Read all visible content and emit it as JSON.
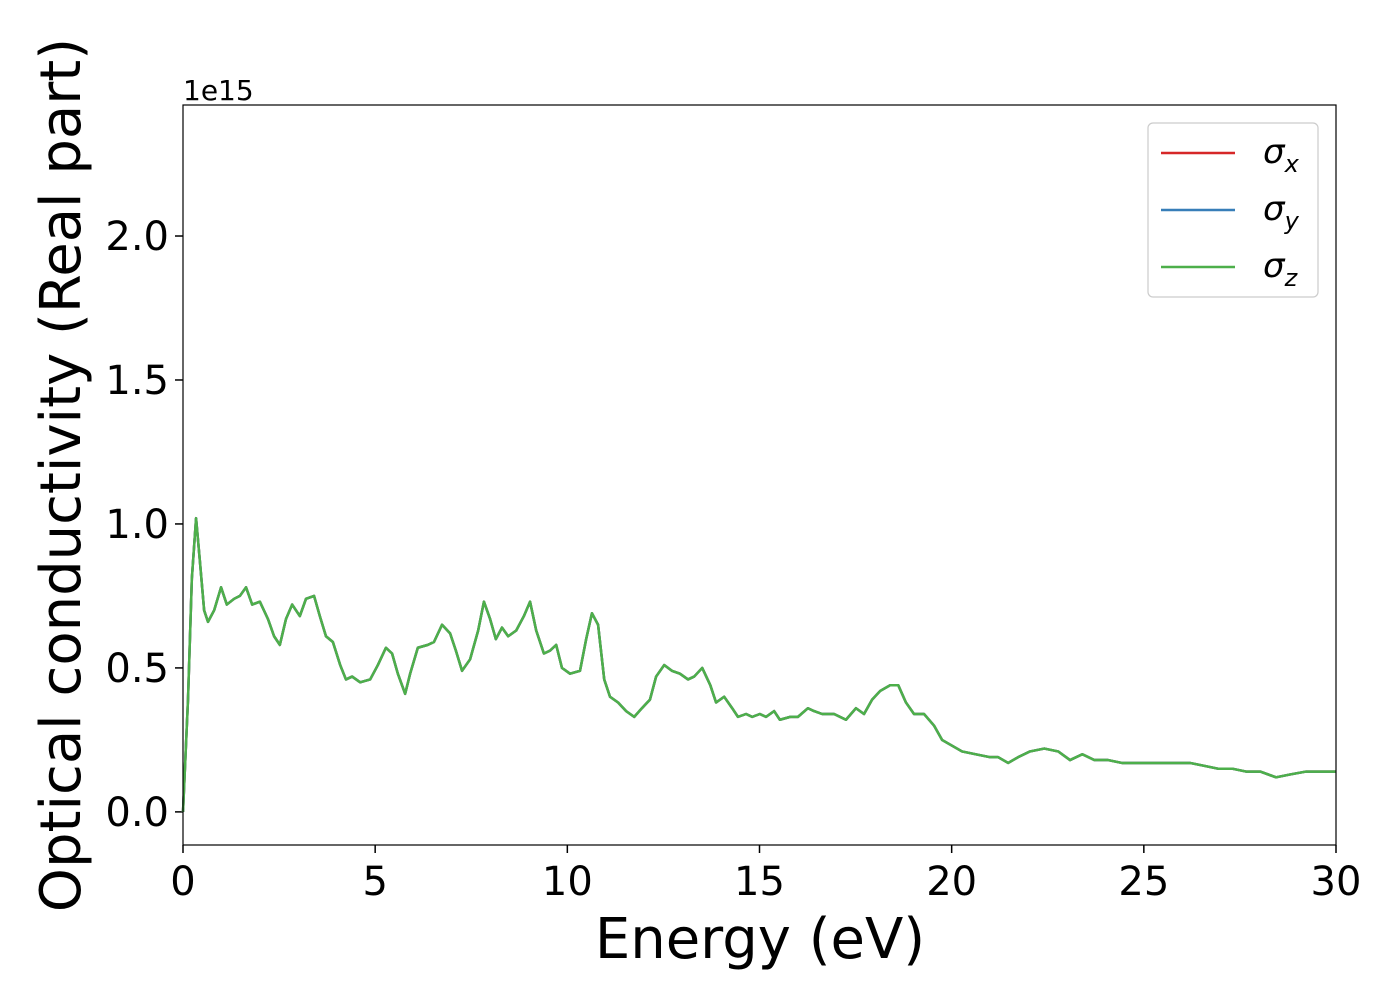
{
  "chart_data": {
    "type": "line",
    "xlabel": "Energy (eV)",
    "ylabel": "Optical conductivity (Real part)",
    "y_offset_label": "1e15",
    "xlim": [
      0,
      30
    ],
    "ylim": [
      -0.115,
      2.455
    ],
    "xticks": [
      0,
      5,
      10,
      15,
      20,
      25,
      30
    ],
    "yticks": [
      {
        "value": 0,
        "label": "0.0"
      },
      0.5,
      {
        "value": 1,
        "label": "1.0"
      },
      1.5,
      {
        "value": 2,
        "label": "2.0"
      }
    ],
    "legend": "upper right",
    "x": [
      0,
      0.13,
      0.23,
      0.34,
      0.44,
      0.55,
      0.65,
      0.81,
      0.99,
      1.14,
      1.33,
      1.48,
      1.64,
      1.8,
      2,
      2.21,
      2.37,
      2.52,
      2.68,
      2.84,
      3.04,
      3.2,
      3.41,
      3.56,
      3.72,
      3.9,
      4.09,
      4.24,
      4.4,
      4.61,
      4.87,
      5.07,
      5.28,
      5.44,
      5.59,
      5.78,
      5.91,
      6.11,
      6.37,
      6.53,
      6.74,
      6.95,
      7.1,
      7.26,
      7.47,
      7.68,
      7.83,
      7.99,
      8.14,
      8.3,
      8.46,
      8.67,
      8.87,
      9.03,
      9.19,
      9.39,
      9.55,
      9.71,
      9.86,
      10.07,
      10.33,
      10.49,
      10.64,
      10.8,
      10.96,
      11.11,
      11.32,
      11.53,
      11.74,
      11.94,
      12.15,
      12.31,
      12.52,
      12.72,
      12.93,
      13.14,
      13.3,
      13.51,
      13.72,
      13.87,
      14.08,
      14.29,
      14.44,
      14.65,
      14.81,
      15.01,
      15.17,
      15.38,
      15.53,
      15.8,
      16,
      16.26,
      16.42,
      16.63,
      16.94,
      17.25,
      17.51,
      17.72,
      17.93,
      18.14,
      18.4,
      18.61,
      18.81,
      19.02,
      19.28,
      19.54,
      19.75,
      20.01,
      20.27,
      20.63,
      21,
      21.21,
      21.47,
      21.73,
      22.04,
      22.41,
      22.77,
      23.08,
      23.4,
      23.71,
      24.07,
      24.43,
      24.8,
      25.16,
      25.47,
      25.84,
      26.2,
      26.57,
      26.93,
      27.3,
      27.66,
      28.03,
      28.44,
      28.81,
      29.22,
      29.58,
      30
    ],
    "series": [
      {
        "name": "σx",
        "color": "#d62728",
        "values": [
          0,
          0.39,
          0.81,
          1.02,
          0.87,
          0.7,
          0.66,
          0.7,
          0.78,
          0.72,
          0.74,
          0.75,
          0.78,
          0.72,
          0.73,
          0.67,
          0.61,
          0.58,
          0.67,
          0.72,
          0.68,
          0.74,
          0.75,
          0.68,
          0.61,
          0.59,
          0.51,
          0.46,
          0.47,
          0.45,
          0.46,
          0.51,
          0.57,
          0.55,
          0.48,
          0.41,
          0.48,
          0.57,
          0.58,
          0.59,
          0.65,
          0.62,
          0.56,
          0.49,
          0.53,
          0.63,
          0.73,
          0.67,
          0.6,
          0.64,
          0.61,
          0.63,
          0.68,
          0.73,
          0.63,
          0.55,
          0.56,
          0.58,
          0.5,
          0.48,
          0.49,
          0.6,
          0.69,
          0.65,
          0.46,
          0.4,
          0.38,
          0.35,
          0.33,
          0.36,
          0.39,
          0.47,
          0.51,
          0.49,
          0.48,
          0.46,
          0.47,
          0.5,
          0.44,
          0.38,
          0.4,
          0.36,
          0.33,
          0.34,
          0.33,
          0.34,
          0.33,
          0.35,
          0.32,
          0.33,
          0.33,
          0.36,
          0.35,
          0.34,
          0.34,
          0.32,
          0.36,
          0.34,
          0.39,
          0.42,
          0.44,
          0.44,
          0.38,
          0.34,
          0.34,
          0.3,
          0.25,
          0.23,
          0.21,
          0.2,
          0.19,
          0.19,
          0.17,
          0.19,
          0.21,
          0.22,
          0.21,
          0.18,
          0.2,
          0.18,
          0.18,
          0.17,
          0.17,
          0.17,
          0.17,
          0.17,
          0.17,
          0.16,
          0.15,
          0.15,
          0.14,
          0.14,
          0.12,
          0.13,
          0.14,
          0.14,
          0.14
        ]
      },
      {
        "name": "σy",
        "color": "#377eb8",
        "values": [
          0,
          0.39,
          0.81,
          1.02,
          0.87,
          0.7,
          0.66,
          0.7,
          0.78,
          0.72,
          0.74,
          0.75,
          0.78,
          0.72,
          0.73,
          0.67,
          0.61,
          0.58,
          0.67,
          0.72,
          0.68,
          0.74,
          0.75,
          0.68,
          0.61,
          0.59,
          0.51,
          0.46,
          0.47,
          0.45,
          0.46,
          0.51,
          0.57,
          0.55,
          0.48,
          0.41,
          0.48,
          0.57,
          0.58,
          0.59,
          0.65,
          0.62,
          0.56,
          0.49,
          0.53,
          0.63,
          0.73,
          0.67,
          0.6,
          0.64,
          0.61,
          0.63,
          0.68,
          0.73,
          0.63,
          0.55,
          0.56,
          0.58,
          0.5,
          0.48,
          0.49,
          0.6,
          0.69,
          0.65,
          0.46,
          0.4,
          0.38,
          0.35,
          0.33,
          0.36,
          0.39,
          0.47,
          0.51,
          0.49,
          0.48,
          0.46,
          0.47,
          0.5,
          0.44,
          0.38,
          0.4,
          0.36,
          0.33,
          0.34,
          0.33,
          0.34,
          0.33,
          0.35,
          0.32,
          0.33,
          0.33,
          0.36,
          0.35,
          0.34,
          0.34,
          0.32,
          0.36,
          0.34,
          0.39,
          0.42,
          0.44,
          0.44,
          0.38,
          0.34,
          0.34,
          0.3,
          0.25,
          0.23,
          0.21,
          0.2,
          0.19,
          0.19,
          0.17,
          0.19,
          0.21,
          0.22,
          0.21,
          0.18,
          0.2,
          0.18,
          0.18,
          0.17,
          0.17,
          0.17,
          0.17,
          0.17,
          0.17,
          0.16,
          0.15,
          0.15,
          0.14,
          0.14,
          0.12,
          0.13,
          0.14,
          0.14,
          0.14
        ]
      },
      {
        "name": "σz",
        "color": "#4daf4a",
        "values": [
          0,
          0.39,
          0.81,
          1.02,
          0.87,
          0.7,
          0.66,
          0.7,
          0.78,
          0.72,
          0.74,
          0.75,
          0.78,
          0.72,
          0.73,
          0.67,
          0.61,
          0.58,
          0.67,
          0.72,
          0.68,
          0.74,
          0.75,
          0.68,
          0.61,
          0.59,
          0.51,
          0.46,
          0.47,
          0.45,
          0.46,
          0.51,
          0.57,
          0.55,
          0.48,
          0.41,
          0.48,
          0.57,
          0.58,
          0.59,
          0.65,
          0.62,
          0.56,
          0.49,
          0.53,
          0.63,
          0.73,
          0.67,
          0.6,
          0.64,
          0.61,
          0.63,
          0.68,
          0.73,
          0.63,
          0.55,
          0.56,
          0.58,
          0.5,
          0.48,
          0.49,
          0.6,
          0.69,
          0.65,
          0.46,
          0.4,
          0.38,
          0.35,
          0.33,
          0.36,
          0.39,
          0.47,
          0.51,
          0.49,
          0.48,
          0.46,
          0.47,
          0.5,
          0.44,
          0.38,
          0.4,
          0.36,
          0.33,
          0.34,
          0.33,
          0.34,
          0.33,
          0.35,
          0.32,
          0.33,
          0.33,
          0.36,
          0.35,
          0.34,
          0.34,
          0.32,
          0.36,
          0.34,
          0.39,
          0.42,
          0.44,
          0.44,
          0.38,
          0.34,
          0.34,
          0.3,
          0.25,
          0.23,
          0.21,
          0.2,
          0.19,
          0.19,
          0.17,
          0.19,
          0.21,
          0.22,
          0.21,
          0.18,
          0.2,
          0.18,
          0.18,
          0.17,
          0.17,
          0.17,
          0.17,
          0.17,
          0.17,
          0.16,
          0.15,
          0.15,
          0.14,
          0.14,
          0.12,
          0.13,
          0.14,
          0.14,
          0.14
        ]
      }
    ]
  }
}
